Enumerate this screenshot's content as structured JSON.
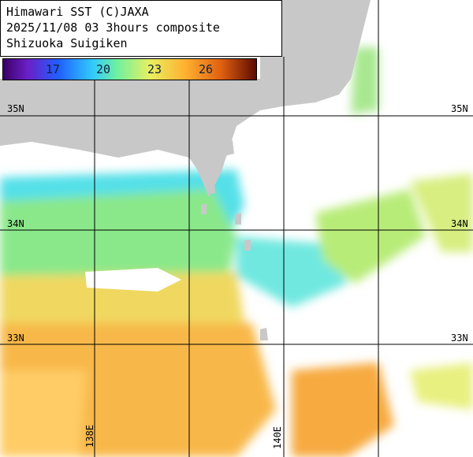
{
  "header": {
    "lines": [
      "Himawari SST (C)JAXA",
      "2025/11/08 03 3hours composite",
      "Shizuoka Suigiken"
    ]
  },
  "colorbar": {
    "labels": [
      "17",
      "20",
      "23",
      "26"
    ]
  },
  "latitudes": {
    "left": [
      "35N",
      "34N",
      "33N"
    ],
    "right": [
      "35N",
      "34N",
      "33N"
    ]
  },
  "longitudes": [
    "138E",
    "140E"
  ]
}
